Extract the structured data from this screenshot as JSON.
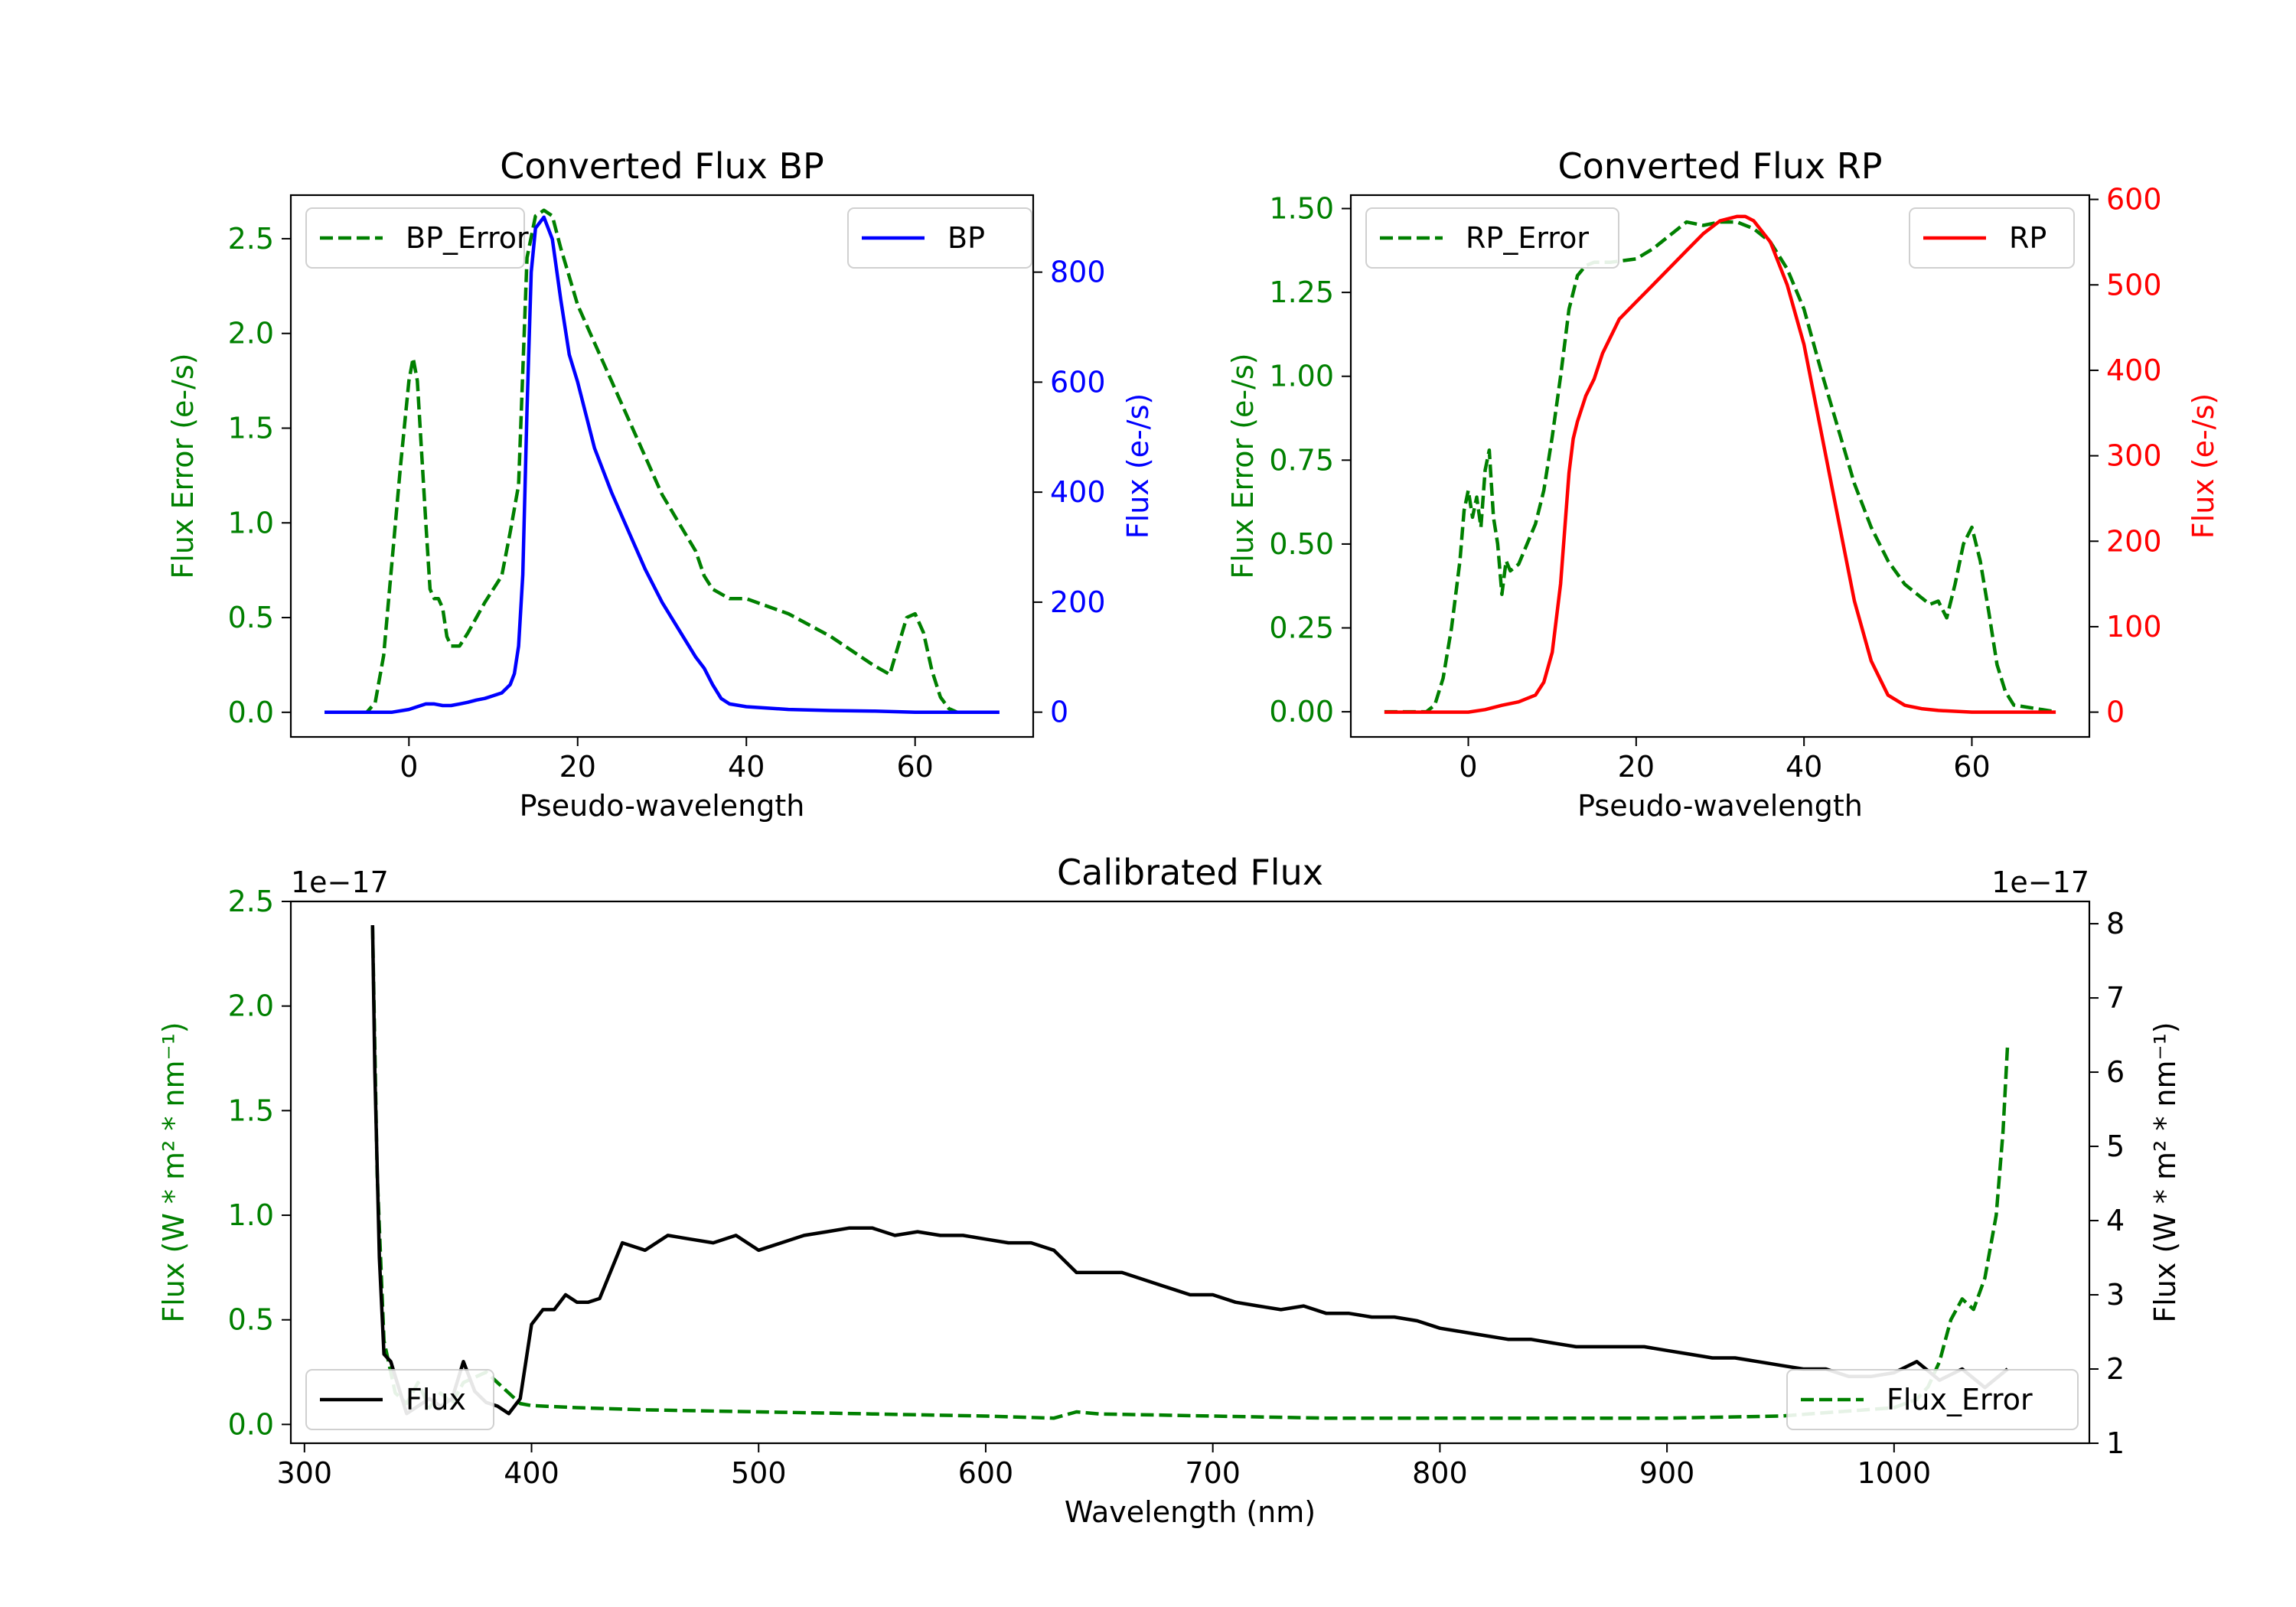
{
  "chart_data": [
    {
      "type": "line",
      "id": "bp",
      "title": "Converted Flux BP",
      "xlabel": "Pseudo-wavelength",
      "xlim": [
        -14,
        74
      ],
      "xticks": [
        "0",
        "20",
        "40",
        "60"
      ],
      "xtick_values": [
        0,
        20,
        40,
        60
      ],
      "left_axis": {
        "label": "Flux Error (e-/s)",
        "color": "#008000",
        "ylim": [
          -0.13,
          2.73
        ],
        "ticks": [
          "0.0",
          "0.5",
          "1.0",
          "1.5",
          "2.0",
          "2.5"
        ],
        "tick_values": [
          0,
          0.5,
          1.0,
          1.5,
          2.0,
          2.5
        ]
      },
      "right_axis": {
        "label": "Flux (e-/s)",
        "color": "#0000ff",
        "ylim": [
          -45,
          940
        ],
        "ticks": [
          "0",
          "200",
          "400",
          "600",
          "800"
        ],
        "tick_values": [
          0,
          200,
          400,
          600,
          800
        ]
      },
      "series": [
        {
          "name": "BP_Error",
          "axis": "left",
          "color": "#008000",
          "dash": true,
          "x": [
            -10,
            -5,
            -4,
            -3,
            -2,
            -1,
            0,
            0.5,
            1,
            2,
            2.5,
            3,
            3.5,
            4,
            4.5,
            5,
            6,
            7,
            8,
            9,
            10,
            11,
            12,
            13,
            14,
            15,
            16,
            17,
            18,
            19,
            20,
            22,
            24,
            26,
            28,
            30,
            32,
            34,
            35,
            36,
            38,
            40,
            45,
            50,
            55,
            57,
            58,
            59,
            60,
            61,
            62,
            63,
            64,
            65,
            70
          ],
          "y": [
            0,
            0,
            0.05,
            0.3,
            0.8,
            1.3,
            1.75,
            1.87,
            1.75,
            1.0,
            0.65,
            0.6,
            0.6,
            0.55,
            0.4,
            0.35,
            0.35,
            0.42,
            0.5,
            0.58,
            0.65,
            0.72,
            0.95,
            1.2,
            2.4,
            2.62,
            2.65,
            2.62,
            2.45,
            2.3,
            2.15,
            1.95,
            1.75,
            1.55,
            1.35,
            1.15,
            1.0,
            0.85,
            0.72,
            0.65,
            0.6,
            0.6,
            0.52,
            0.4,
            0.25,
            0.2,
            0.35,
            0.5,
            0.52,
            0.42,
            0.22,
            0.08,
            0.02,
            0,
            0
          ]
        },
        {
          "name": "BP",
          "axis": "right",
          "color": "#0000ff",
          "dash": false,
          "x": [
            -10,
            -5,
            -2,
            0,
            1,
            2,
            3,
            4,
            5,
            6,
            7,
            8,
            9,
            10,
            11,
            12,
            12.5,
            13,
            13.5,
            14,
            14.5,
            15,
            16,
            17,
            18,
            19,
            20,
            21,
            22,
            24,
            26,
            28,
            30,
            32,
            34,
            35,
            36,
            37,
            38,
            40,
            45,
            50,
            55,
            60,
            65,
            70
          ],
          "y": [
            0,
            0,
            0,
            5,
            10,
            15,
            15,
            12,
            12,
            15,
            18,
            22,
            25,
            30,
            35,
            50,
            70,
            120,
            250,
            550,
            800,
            880,
            900,
            860,
            750,
            650,
            600,
            540,
            480,
            400,
            330,
            260,
            200,
            150,
            100,
            80,
            50,
            25,
            15,
            10,
            5,
            3,
            2,
            0,
            0,
            0
          ]
        }
      ],
      "legend": [
        {
          "label": "BP_Error",
          "position": "upper-left"
        },
        {
          "label": "BP",
          "position": "upper-right"
        }
      ]
    },
    {
      "type": "line",
      "id": "rp",
      "title": "Converted Flux RP",
      "xlabel": "Pseudo-wavelength",
      "xlim": [
        -14,
        74
      ],
      "xticks": [
        "0",
        "20",
        "40",
        "60"
      ],
      "xtick_values": [
        0,
        20,
        40,
        60
      ],
      "left_axis": {
        "label": "Flux Error (e-/s)",
        "color": "#008000",
        "ylim": [
          -0.075,
          1.54
        ],
        "ticks": [
          "0.00",
          "0.25",
          "0.50",
          "0.75",
          "1.00",
          "1.25",
          "1.50"
        ],
        "tick_values": [
          0,
          0.25,
          0.5,
          0.75,
          1.0,
          1.25,
          1.5
        ]
      },
      "right_axis": {
        "label": "Flux (e-/s)",
        "color": "#ff0000",
        "ylim": [
          -29,
          605
        ],
        "ticks": [
          "0",
          "100",
          "200",
          "300",
          "400",
          "500",
          "600"
        ],
        "tick_values": [
          0,
          100,
          200,
          300,
          400,
          500,
          600
        ]
      },
      "series": [
        {
          "name": "RP_Error",
          "axis": "left",
          "color": "#008000",
          "dash": true,
          "x": [
            -10,
            -5,
            -4,
            -3,
            -2,
            -1,
            -0.5,
            0,
            0.5,
            1,
            1.5,
            2,
            2.5,
            3,
            3.5,
            4,
            4.5,
            5,
            6,
            7,
            8,
            9,
            10,
            11,
            12,
            13,
            14,
            15,
            17,
            20,
            22,
            24,
            26,
            28,
            30,
            32,
            34,
            36,
            38,
            40,
            42,
            44,
            46,
            48,
            50,
            52,
            54,
            55,
            56,
            57,
            58,
            59,
            60,
            61,
            62,
            63,
            64,
            65,
            70
          ],
          "y": [
            0,
            0,
            0.02,
            0.1,
            0.25,
            0.45,
            0.6,
            0.66,
            0.58,
            0.64,
            0.55,
            0.72,
            0.78,
            0.58,
            0.5,
            0.35,
            0.45,
            0.42,
            0.44,
            0.5,
            0.56,
            0.66,
            0.82,
            1.0,
            1.2,
            1.3,
            1.33,
            1.34,
            1.34,
            1.35,
            1.38,
            1.42,
            1.46,
            1.45,
            1.46,
            1.46,
            1.44,
            1.4,
            1.32,
            1.2,
            1.02,
            0.85,
            0.68,
            0.55,
            0.45,
            0.38,
            0.34,
            0.32,
            0.33,
            0.28,
            0.38,
            0.5,
            0.55,
            0.45,
            0.3,
            0.14,
            0.06,
            0.02,
            0
          ]
        },
        {
          "name": "RP",
          "axis": "right",
          "color": "#ff0000",
          "dash": false,
          "x": [
            -10,
            -5,
            0,
            2,
            4,
            6,
            8,
            9,
            10,
            11,
            12,
            12.5,
            13,
            14,
            15,
            16,
            18,
            20,
            22,
            24,
            26,
            28,
            30,
            32,
            33,
            34,
            36,
            38,
            40,
            42,
            44,
            46,
            48,
            50,
            52,
            54,
            56,
            58,
            60,
            65,
            70
          ],
          "y": [
            0,
            0,
            0,
            3,
            8,
            12,
            20,
            35,
            70,
            150,
            280,
            320,
            340,
            370,
            390,
            420,
            460,
            480,
            500,
            520,
            540,
            560,
            575,
            580,
            580,
            575,
            550,
            500,
            430,
            330,
            230,
            130,
            60,
            20,
            8,
            4,
            2,
            1,
            0,
            0,
            0
          ]
        }
      ],
      "legend": [
        {
          "label": "RP_Error",
          "position": "upper-left"
        },
        {
          "label": "RP",
          "position": "upper-right"
        }
      ]
    },
    {
      "type": "line",
      "id": "cal",
      "title": "Calibrated Flux",
      "xlabel": "Wavelength (nm)",
      "xlim": [
        294,
        1086
      ],
      "xticks": [
        "300",
        "400",
        "500",
        "600",
        "700",
        "800",
        "900",
        "1000"
      ],
      "xtick_values": [
        300,
        400,
        500,
        600,
        700,
        800,
        900,
        1000
      ],
      "left_axis": {
        "label": "Flux (W * m² * nm⁻¹)",
        "color": "#008000",
        "ylim": [
          -0.09,
          2.5
        ],
        "ticks": [
          "0.0",
          "0.5",
          "1.0",
          "1.5",
          "2.0",
          "2.5"
        ],
        "tick_values": [
          0,
          0.5,
          1.0,
          1.5,
          2.0,
          2.5
        ],
        "offset_text": "1e−17"
      },
      "right_axis": {
        "label": "Flux (W * m² * nm⁻¹)",
        "color": "#000000",
        "ylim": [
          1.0,
          8.3
        ],
        "ticks": [
          "1",
          "2",
          "3",
          "4",
          "5",
          "6",
          "7",
          "8"
        ],
        "tick_values": [
          1,
          2,
          3,
          4,
          5,
          6,
          7,
          8
        ],
        "offset_text": "1e−17"
      },
      "series": [
        {
          "name": "Flux_Error",
          "axis": "left",
          "color": "#008000",
          "dash": true,
          "x": [
            330,
            332,
            335,
            340,
            345,
            350,
            355,
            360,
            365,
            370,
            380,
            385,
            390,
            395,
            400,
            420,
            450,
            500,
            550,
            600,
            630,
            640,
            650,
            700,
            750,
            800,
            850,
            900,
            950,
            1000,
            1010,
            1015,
            1020,
            1025,
            1030,
            1035,
            1040,
            1045,
            1048,
            1050
          ],
          "y": [
            2.38,
            1.2,
            0.4,
            0.15,
            0.1,
            0.2,
            0.08,
            0.15,
            0.1,
            0.2,
            0.25,
            0.2,
            0.15,
            0.1,
            0.09,
            0.08,
            0.07,
            0.06,
            0.05,
            0.04,
            0.03,
            0.06,
            0.05,
            0.04,
            0.03,
            0.03,
            0.03,
            0.03,
            0.04,
            0.08,
            0.12,
            0.18,
            0.3,
            0.5,
            0.6,
            0.55,
            0.7,
            1.0,
            1.4,
            1.82
          ]
        },
        {
          "name": "Flux",
          "axis": "right",
          "color": "#000000",
          "dash": false,
          "x": [
            330,
            331,
            333,
            335,
            338,
            340,
            345,
            350,
            355,
            360,
            365,
            370,
            375,
            380,
            385,
            390,
            395,
            400,
            405,
            410,
            415,
            420,
            425,
            430,
            440,
            450,
            460,
            470,
            480,
            490,
            500,
            510,
            520,
            530,
            540,
            550,
            560,
            570,
            580,
            590,
            600,
            610,
            620,
            630,
            640,
            650,
            660,
            670,
            680,
            690,
            700,
            710,
            720,
            730,
            740,
            750,
            760,
            770,
            780,
            790,
            800,
            810,
            820,
            830,
            840,
            850,
            860,
            870,
            880,
            890,
            900,
            910,
            920,
            930,
            940,
            950,
            960,
            970,
            980,
            990,
            1000,
            1010,
            1020,
            1030,
            1040,
            1050
          ],
          "y": [
            7.98,
            6.0,
            3.5,
            2.2,
            2.1,
            1.9,
            1.4,
            1.5,
            1.6,
            1.5,
            1.6,
            2.1,
            1.7,
            1.55,
            1.5,
            1.4,
            1.6,
            2.6,
            2.8,
            2.8,
            3.0,
            2.9,
            2.9,
            2.95,
            3.7,
            3.6,
            3.8,
            3.75,
            3.7,
            3.8,
            3.6,
            3.7,
            3.8,
            3.85,
            3.9,
            3.9,
            3.8,
            3.85,
            3.8,
            3.8,
            3.75,
            3.7,
            3.7,
            3.6,
            3.3,
            3.3,
            3.3,
            3.2,
            3.1,
            3.0,
            3.0,
            2.9,
            2.85,
            2.8,
            2.85,
            2.75,
            2.75,
            2.7,
            2.7,
            2.65,
            2.55,
            2.5,
            2.45,
            2.4,
            2.4,
            2.35,
            2.3,
            2.3,
            2.3,
            2.3,
            2.25,
            2.2,
            2.15,
            2.15,
            2.1,
            2.05,
            2.0,
            2.0,
            1.9,
            1.9,
            1.95,
            2.1,
            1.85,
            2.0,
            1.75,
            2.0
          ]
        }
      ],
      "legend": [
        {
          "label": "Flux",
          "position": "lower-left"
        },
        {
          "label": "Flux_Error",
          "position": "lower-right"
        }
      ]
    }
  ]
}
